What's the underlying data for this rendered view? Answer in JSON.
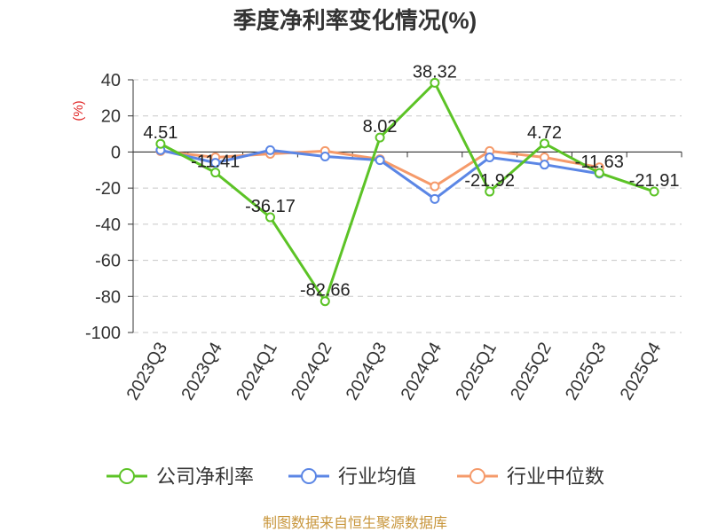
{
  "chart_data": {
    "type": "line",
    "title": "季度净利率变化情况(%)",
    "ylabel": "(%)",
    "xlabel": "",
    "ylim": [
      -100,
      40
    ],
    "yticks": [
      40,
      20,
      0,
      -20,
      -40,
      -60,
      -80,
      -100
    ],
    "grid": true,
    "legend_position": "bottom",
    "categories": [
      "2023Q3",
      "2023Q4",
      "2024Q1",
      "2024Q2",
      "2024Q3",
      "2024Q4",
      "2025Q1",
      "2025Q2",
      "2025Q3",
      "2025Q4"
    ],
    "series": [
      {
        "name": "公司净利率",
        "color": "#5cc326",
        "values": [
          4.51,
          -11.41,
          -36.17,
          -82.66,
          8.02,
          38.32,
          -21.92,
          4.72,
          -11.63,
          -21.91
        ],
        "labels": [
          "4.51",
          "-11.41",
          "-36.17",
          "-82.66",
          "8.02",
          "38.32",
          "-21.92",
          "4.72",
          "-11.63",
          "-21.91"
        ]
      },
      {
        "name": "行业均值",
        "color": "#5b86e5",
        "values": [
          1.0,
          -6.0,
          1.0,
          -2.5,
          -4.5,
          -26.0,
          -3.0,
          -7.0,
          -12.0,
          null
        ]
      },
      {
        "name": "行业中位数",
        "color": "#f59a6a",
        "values": [
          0.5,
          -3.0,
          -1.0,
          0.5,
          -4.0,
          -19.0,
          0.5,
          -3.0,
          -8.5,
          null
        ]
      }
    ],
    "source": "制图数据来自恒生聚源数据库"
  }
}
